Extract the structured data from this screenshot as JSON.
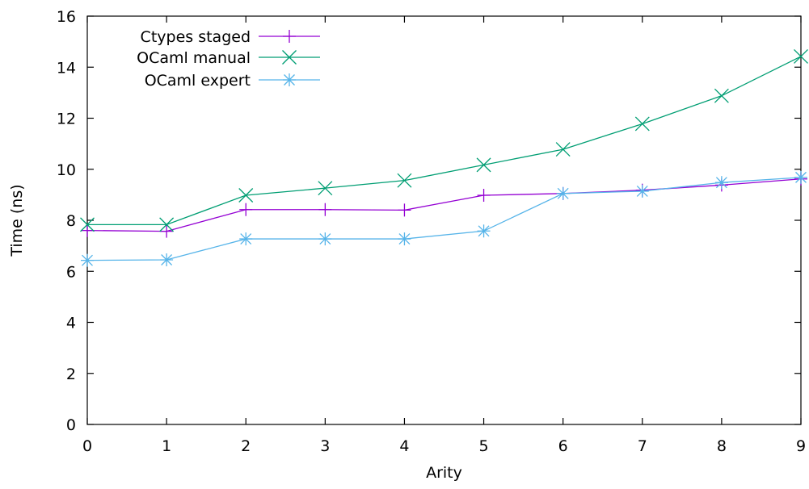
{
  "chart_data": {
    "type": "line",
    "title": "",
    "xlabel": "Arity",
    "ylabel": "Time (ns)",
    "xlim": [
      0,
      9
    ],
    "ylim": [
      0,
      16
    ],
    "xticks": [
      0,
      1,
      2,
      3,
      4,
      5,
      6,
      7,
      8,
      9
    ],
    "yticks": [
      0,
      2,
      4,
      6,
      8,
      10,
      12,
      14,
      16
    ],
    "grid": false,
    "legend_position": "top-left",
    "x": [
      0,
      1,
      2,
      3,
      4,
      5,
      6,
      7,
      8,
      9
    ],
    "series": [
      {
        "name": "Ctypes staged",
        "color": "#9400d3",
        "marker": "plus",
        "values": [
          7.6,
          7.57,
          8.42,
          8.42,
          8.4,
          8.98,
          9.05,
          9.18,
          9.38,
          9.62
        ]
      },
      {
        "name": "OCaml manual",
        "color": "#009e73",
        "marker": "cross",
        "values": [
          7.83,
          7.83,
          8.98,
          9.26,
          9.56,
          10.17,
          10.78,
          11.78,
          12.88,
          14.42
        ]
      },
      {
        "name": "OCaml expert",
        "color": "#56b4e9",
        "marker": "star",
        "values": [
          6.43,
          6.45,
          7.27,
          7.27,
          7.27,
          7.58,
          9.05,
          9.14,
          9.48,
          9.68
        ]
      }
    ]
  }
}
